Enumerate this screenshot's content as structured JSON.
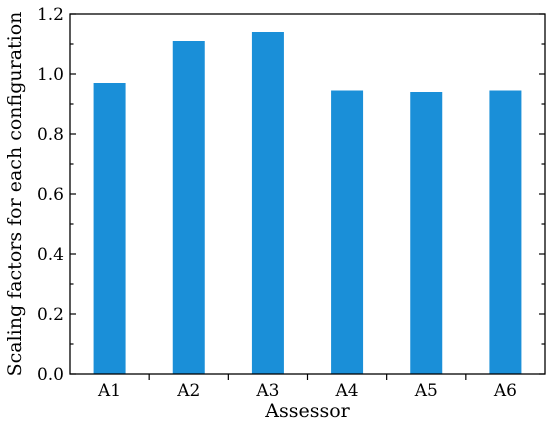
{
  "chart_data": {
    "type": "bar",
    "categories": [
      "A1",
      "A2",
      "A3",
      "A4",
      "A5",
      "A6"
    ],
    "values": [
      0.97,
      1.11,
      1.14,
      0.945,
      0.94,
      0.945
    ],
    "title": "",
    "xlabel": "Assessor",
    "ylabel": "Scaling factors for each configuration",
    "ylim": [
      0,
      1.2
    ],
    "yticks": [
      "0.0",
      "0.2",
      "0.4",
      "0.6",
      "0.8",
      "1.0",
      "1.2"
    ],
    "grid": false,
    "bar_color": "#1a8fd8"
  }
}
